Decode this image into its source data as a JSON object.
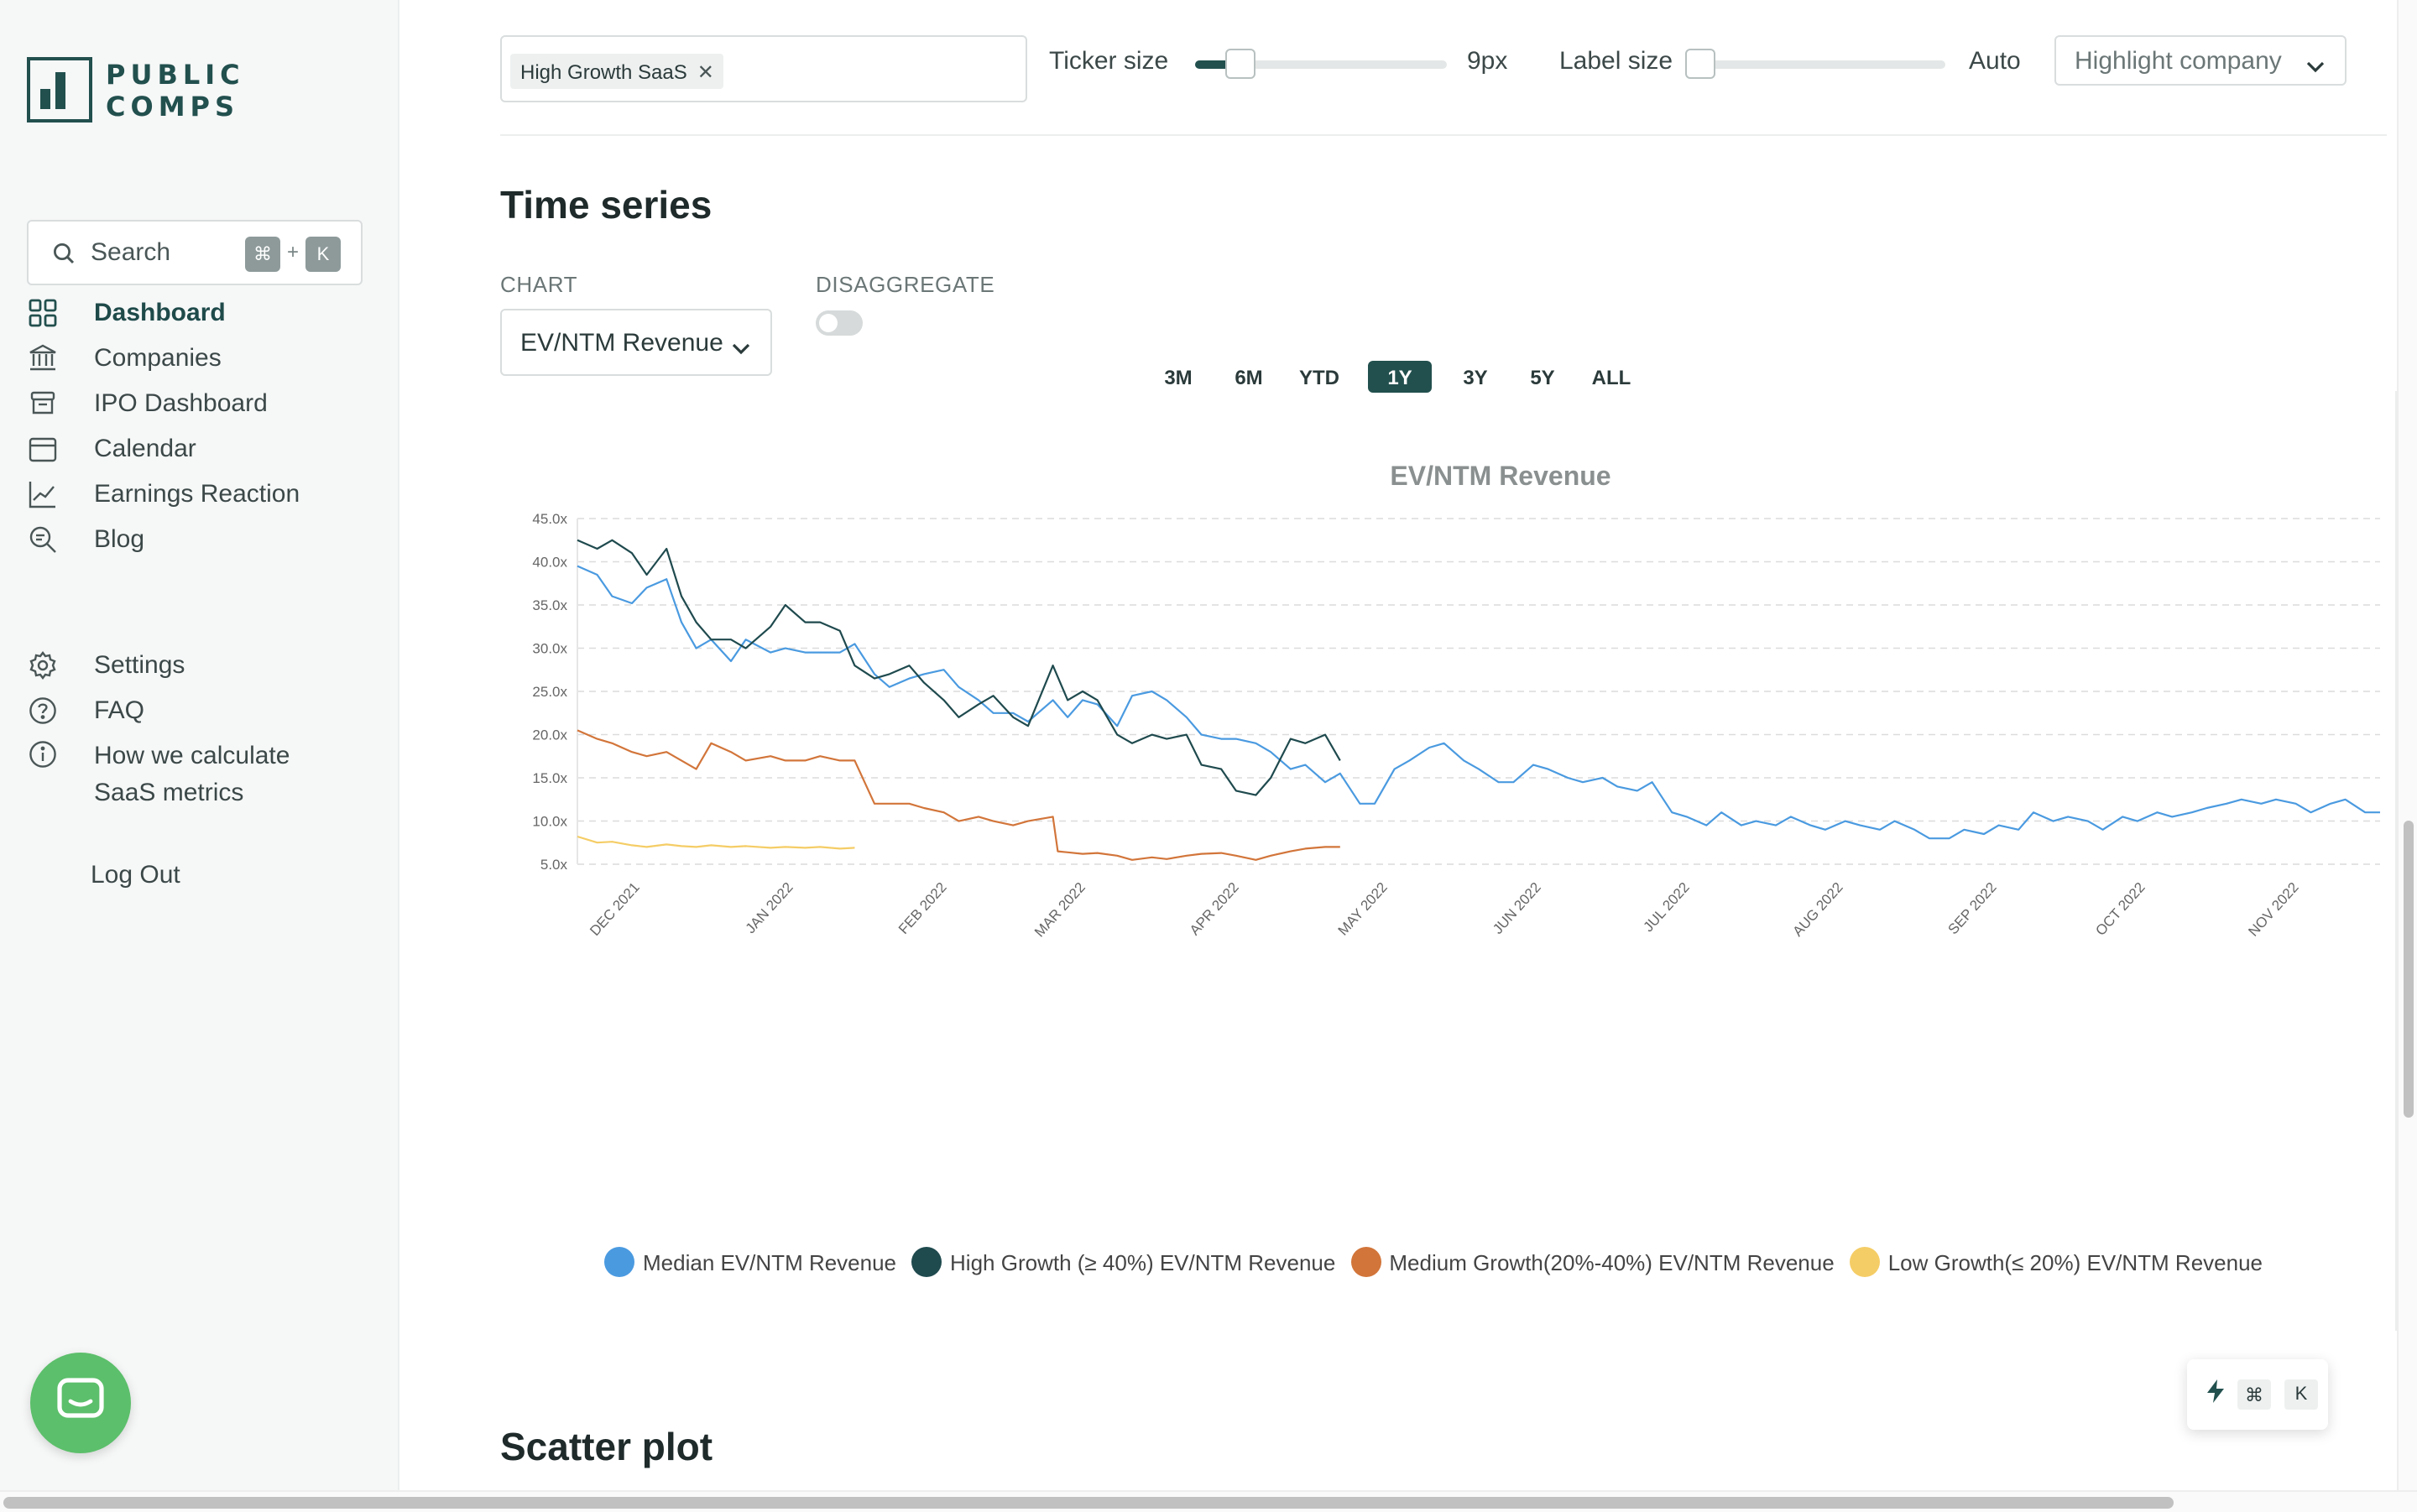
{
  "brand": {
    "line1": "PUBLIC",
    "line2": "COMPS"
  },
  "search": {
    "label": "Search",
    "kbd1": "⌘",
    "plus": "+",
    "kbd2": "K"
  },
  "nav": [
    {
      "label": "Dashboard",
      "icon": "grid-icon"
    },
    {
      "label": "Companies",
      "icon": "bank-icon"
    },
    {
      "label": "IPO Dashboard",
      "icon": "box-icon"
    },
    {
      "label": "Calendar",
      "icon": "calendar-icon"
    },
    {
      "label": "Earnings Reaction",
      "icon": "trend-icon"
    },
    {
      "label": "Blog",
      "icon": "search-doc-icon"
    }
  ],
  "nav_secondary": [
    {
      "label": "Settings",
      "icon": "gear-icon"
    },
    {
      "label": "FAQ",
      "icon": "question-icon"
    },
    {
      "label": "How we calculate SaaS metrics",
      "icon": "info-icon"
    }
  ],
  "logout": "Log Out",
  "filters": {
    "tag": "High Growth SaaS",
    "tag_remove": "✕",
    "ticker_size_label": "Ticker size",
    "ticker_size_value": "9px",
    "ticker_size_fraction": 0.14,
    "label_size_label": "Label size",
    "label_size_value": "Auto",
    "label_size_fraction": 0.0,
    "highlight_placeholder": "Highlight company"
  },
  "time_series": {
    "title": "Time series",
    "chart_label": "CHART",
    "chart_select": "EV/NTM Revenue",
    "disaggregate_label": "DISAGGREGATE",
    "disaggregate_on": false,
    "ranges": [
      "3M",
      "6M",
      "YTD",
      "1Y",
      "3Y",
      "5Y",
      "ALL"
    ],
    "active_range": "1Y"
  },
  "scatter": {
    "title": "Scatter plot"
  },
  "float_kbar": {
    "k1": "⌘",
    "k2": "K"
  },
  "colors": {
    "accent": "#22504e",
    "median": "#4a9ae0",
    "high": "#1f4a4e",
    "medium": "#d2753a",
    "low": "#f5cd66"
  },
  "chart_data": {
    "type": "line",
    "title": "EV/NTM Revenue",
    "ylim": [
      5,
      45
    ],
    "yticks": [
      "45.0x",
      "40.0x",
      "35.0x",
      "30.0x",
      "25.0x",
      "20.0x",
      "15.0x",
      "10.0x",
      "5.0x"
    ],
    "ytick_values": [
      45,
      40,
      35,
      30,
      25,
      20,
      15,
      10,
      5
    ],
    "xticks": [
      "DEC 2021",
      "JAN 2022",
      "FEB 2022",
      "MAR 2022",
      "APR 2022",
      "MAY 2022",
      "JUN 2022",
      "JUL 2022",
      "AUG 2022",
      "SEP 2022",
      "OCT 2022",
      "NOV 2022"
    ],
    "x_start": "2021-11-19",
    "x_end": "2022-11-18",
    "grid": true,
    "legend_position": "bottom",
    "series": [
      {
        "name": "Median EV/NTM Revenue",
        "color_key": "median",
        "points": [
          [
            "2021-11-19",
            39.5
          ],
          [
            "2021-11-23",
            38.5
          ],
          [
            "2021-11-26",
            36
          ],
          [
            "2021-11-30",
            35.2
          ],
          [
            "2021-12-03",
            37
          ],
          [
            "2021-12-07",
            38
          ],
          [
            "2021-12-10",
            33
          ],
          [
            "2021-12-13",
            30
          ],
          [
            "2021-12-16",
            31
          ],
          [
            "2021-12-20",
            28.5
          ],
          [
            "2021-12-23",
            31
          ],
          [
            "2021-12-28",
            29.5
          ],
          [
            "2021-12-31",
            30
          ],
          [
            "2022-01-04",
            29.5
          ],
          [
            "2022-01-07",
            29.5
          ],
          [
            "2022-01-11",
            29.5
          ],
          [
            "2022-01-14",
            30.5
          ],
          [
            "2022-01-18",
            27
          ],
          [
            "2022-01-21",
            25.5
          ],
          [
            "2022-01-25",
            26.5
          ],
          [
            "2022-01-28",
            27
          ],
          [
            "2022-02-01",
            27.5
          ],
          [
            "2022-02-04",
            25.5
          ],
          [
            "2022-02-08",
            24
          ],
          [
            "2022-02-11",
            22.5
          ],
          [
            "2022-02-15",
            22.5
          ],
          [
            "2022-02-18",
            21.5
          ],
          [
            "2022-02-23",
            24
          ],
          [
            "2022-02-26",
            22
          ],
          [
            "2022-03-01",
            24
          ],
          [
            "2022-03-04",
            23.5
          ],
          [
            "2022-03-08",
            21
          ],
          [
            "2022-03-11",
            24.5
          ],
          [
            "2022-03-15",
            25
          ],
          [
            "2022-03-18",
            24
          ],
          [
            "2022-03-22",
            22
          ],
          [
            "2022-03-25",
            20
          ],
          [
            "2022-03-29",
            19.5
          ],
          [
            "2022-04-01",
            19.5
          ],
          [
            "2022-04-05",
            19
          ],
          [
            "2022-04-08",
            18
          ],
          [
            "2022-04-12",
            16
          ],
          [
            "2022-04-15",
            16.5
          ],
          [
            "2022-04-19",
            14.5
          ],
          [
            "2022-04-22",
            15.5
          ],
          [
            "2022-04-26",
            12
          ],
          [
            "2022-04-29",
            12
          ],
          [
            "2022-05-03",
            16
          ],
          [
            "2022-05-06",
            17
          ],
          [
            "2022-05-10",
            18.5
          ],
          [
            "2022-05-13",
            19
          ],
          [
            "2022-05-17",
            17
          ],
          [
            "2022-05-20",
            16
          ],
          [
            "2022-05-24",
            14.5
          ],
          [
            "2022-05-27",
            14.5
          ],
          [
            "2022-05-31",
            16.5
          ],
          [
            "2022-06-03",
            16
          ],
          [
            "2022-06-07",
            15
          ],
          [
            "2022-06-10",
            14.5
          ],
          [
            "2022-06-14",
            15
          ],
          [
            "2022-06-17",
            14
          ],
          [
            "2022-06-21",
            13.5
          ],
          [
            "2022-06-24",
            14.5
          ],
          [
            "2022-06-28",
            11
          ],
          [
            "2022-07-01",
            10.5
          ],
          [
            "2022-07-05",
            9.5
          ],
          [
            "2022-07-08",
            11
          ],
          [
            "2022-07-12",
            9.5
          ],
          [
            "2022-07-15",
            10
          ],
          [
            "2022-07-19",
            9.5
          ],
          [
            "2022-07-22",
            10.5
          ],
          [
            "2022-07-26",
            9.5
          ],
          [
            "2022-07-29",
            9
          ],
          [
            "2022-08-02",
            10
          ],
          [
            "2022-08-05",
            9.5
          ],
          [
            "2022-08-09",
            9
          ],
          [
            "2022-08-12",
            10
          ],
          [
            "2022-08-16",
            9
          ],
          [
            "2022-08-19",
            8
          ],
          [
            "2022-08-23",
            8
          ],
          [
            "2022-08-26",
            9
          ],
          [
            "2022-08-30",
            8.5
          ],
          [
            "2022-09-02",
            9.5
          ],
          [
            "2022-09-06",
            9
          ],
          [
            "2022-09-09",
            11
          ],
          [
            "2022-09-13",
            10
          ],
          [
            "2022-09-16",
            10.5
          ],
          [
            "2022-09-20",
            10
          ],
          [
            "2022-09-23",
            9
          ],
          [
            "2022-09-27",
            10.5
          ],
          [
            "2022-09-30",
            10
          ],
          [
            "2022-10-04",
            11
          ],
          [
            "2022-10-07",
            10.5
          ],
          [
            "2022-10-11",
            11
          ],
          [
            "2022-10-14",
            11.5
          ],
          [
            "2022-10-18",
            12
          ],
          [
            "2022-10-21",
            12.5
          ],
          [
            "2022-10-25",
            12
          ],
          [
            "2022-10-28",
            12.5
          ],
          [
            "2022-11-01",
            12
          ],
          [
            "2022-11-04",
            11
          ],
          [
            "2022-11-08",
            12
          ],
          [
            "2022-11-11",
            12.5
          ],
          [
            "2022-11-15",
            11
          ],
          [
            "2022-11-18",
            11
          ]
        ]
      },
      {
        "name": "High Growth (≥ 40%) EV/NTM Revenue",
        "color_key": "high",
        "points": [
          [
            "2021-11-19",
            42.5
          ],
          [
            "2021-11-23",
            41.5
          ],
          [
            "2021-11-26",
            42.5
          ],
          [
            "2021-11-30",
            41
          ],
          [
            "2021-12-03",
            38.5
          ],
          [
            "2021-12-07",
            41.5
          ],
          [
            "2021-12-10",
            36
          ],
          [
            "2021-12-13",
            33
          ],
          [
            "2021-12-16",
            31
          ],
          [
            "2021-12-20",
            31
          ],
          [
            "2021-12-23",
            30
          ],
          [
            "2021-12-28",
            32.5
          ],
          [
            "2021-12-31",
            35
          ],
          [
            "2022-01-04",
            33
          ],
          [
            "2022-01-07",
            33
          ],
          [
            "2022-01-11",
            32
          ],
          [
            "2022-01-14",
            28
          ],
          [
            "2022-01-18",
            26.5
          ],
          [
            "2022-01-21",
            27
          ],
          [
            "2022-01-25",
            28
          ],
          [
            "2022-01-28",
            26
          ],
          [
            "2022-02-01",
            24
          ],
          [
            "2022-02-04",
            22
          ],
          [
            "2022-02-08",
            23.5
          ],
          [
            "2022-02-11",
            24.5
          ],
          [
            "2022-02-15",
            22
          ],
          [
            "2022-02-18",
            21
          ],
          [
            "2022-02-23",
            28
          ],
          [
            "2022-02-26",
            24
          ],
          [
            "2022-03-01",
            25
          ],
          [
            "2022-03-04",
            24
          ],
          [
            "2022-03-08",
            20
          ],
          [
            "2022-03-11",
            19
          ],
          [
            "2022-03-15",
            20
          ],
          [
            "2022-03-18",
            19.5
          ],
          [
            "2022-03-22",
            20
          ],
          [
            "2022-03-25",
            16.5
          ],
          [
            "2022-03-29",
            16
          ],
          [
            "2022-04-01",
            13.5
          ],
          [
            "2022-04-05",
            13
          ],
          [
            "2022-04-08",
            15
          ],
          [
            "2022-04-12",
            19.5
          ],
          [
            "2022-04-15",
            19
          ],
          [
            "2022-04-19",
            20
          ],
          [
            "2022-04-22",
            17
          ]
        ]
      },
      {
        "name": "Medium Growth(20%-40%) EV/NTM Revenue",
        "color_key": "medium",
        "points": [
          [
            "2021-11-19",
            20.5
          ],
          [
            "2021-11-23",
            19.5
          ],
          [
            "2021-11-26",
            19
          ],
          [
            "2021-11-30",
            18
          ],
          [
            "2021-12-03",
            17.5
          ],
          [
            "2021-12-07",
            18
          ],
          [
            "2021-12-10",
            17
          ],
          [
            "2021-12-13",
            16
          ],
          [
            "2021-12-16",
            19
          ],
          [
            "2021-12-20",
            18
          ],
          [
            "2021-12-23",
            17
          ],
          [
            "2021-12-28",
            17.5
          ],
          [
            "2021-12-31",
            17
          ],
          [
            "2022-01-04",
            17
          ],
          [
            "2022-01-07",
            17.5
          ],
          [
            "2022-01-11",
            17
          ],
          [
            "2022-01-14",
            17
          ],
          [
            "2022-01-18",
            12
          ],
          [
            "2022-01-21",
            12
          ],
          [
            "2022-01-25",
            12
          ],
          [
            "2022-01-28",
            11.5
          ],
          [
            "2022-02-01",
            11
          ],
          [
            "2022-02-04",
            10
          ],
          [
            "2022-02-08",
            10.5
          ],
          [
            "2022-02-11",
            10
          ],
          [
            "2022-02-15",
            9.5
          ],
          [
            "2022-02-18",
            10
          ],
          [
            "2022-02-23",
            10.5
          ],
          [
            "2022-02-24",
            6.5
          ],
          [
            "2022-03-01",
            6.2
          ],
          [
            "2022-03-04",
            6.3
          ],
          [
            "2022-03-08",
            6
          ],
          [
            "2022-03-11",
            5.5
          ],
          [
            "2022-03-15",
            5.8
          ],
          [
            "2022-03-18",
            5.6
          ],
          [
            "2022-03-22",
            6
          ],
          [
            "2022-03-25",
            6.2
          ],
          [
            "2022-03-29",
            6.3
          ],
          [
            "2022-04-01",
            6
          ],
          [
            "2022-04-05",
            5.5
          ],
          [
            "2022-04-08",
            6
          ],
          [
            "2022-04-12",
            6.5
          ],
          [
            "2022-04-15",
            6.8
          ],
          [
            "2022-04-19",
            7
          ],
          [
            "2022-04-22",
            7
          ]
        ]
      },
      {
        "name": "Low Growth(≤ 20%) EV/NTM Revenue",
        "color_key": "low",
        "points": [
          [
            "2021-11-19",
            8.2
          ],
          [
            "2021-11-23",
            7.5
          ],
          [
            "2021-11-26",
            7.6
          ],
          [
            "2021-11-30",
            7.2
          ],
          [
            "2021-12-03",
            7
          ],
          [
            "2021-12-07",
            7.3
          ],
          [
            "2021-12-10",
            7.1
          ],
          [
            "2021-12-13",
            7
          ],
          [
            "2021-12-16",
            7.2
          ],
          [
            "2021-12-20",
            7
          ],
          [
            "2021-12-23",
            7.1
          ],
          [
            "2021-12-28",
            6.9
          ],
          [
            "2021-12-31",
            7
          ],
          [
            "2022-01-04",
            6.9
          ],
          [
            "2022-01-07",
            7
          ],
          [
            "2022-01-11",
            6.8
          ],
          [
            "2022-01-14",
            6.9
          ]
        ]
      }
    ]
  }
}
